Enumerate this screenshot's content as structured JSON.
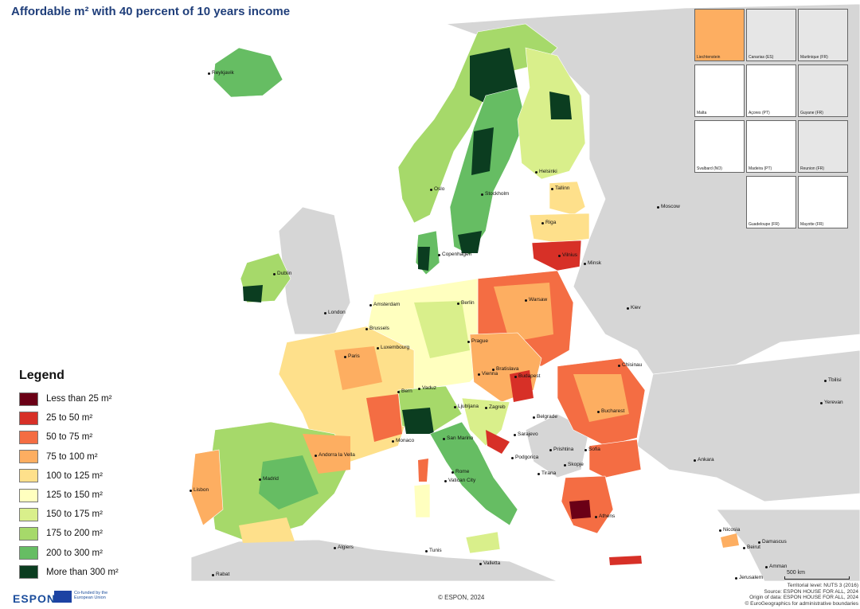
{
  "title": "Affordable m² with 40 percent of 10 years income",
  "legend": {
    "heading": "Legend",
    "items": [
      {
        "label": "Less than 25 m²",
        "color": "#6b0016"
      },
      {
        "label": "25 to 50 m²",
        "color": "#d73027"
      },
      {
        "label": "50 to 75 m²",
        "color": "#f46d43"
      },
      {
        "label": "75 to 100 m²",
        "color": "#fdae61"
      },
      {
        "label": "100 to 125 m²",
        "color": "#fee08b"
      },
      {
        "label": "125 to 150 m²",
        "color": "#ffffbf"
      },
      {
        "label": "150 to 175 m²",
        "color": "#d9ef8b"
      },
      {
        "label": "175 to 200 m²",
        "color": "#a6d96a"
      },
      {
        "label": "200 to 300 m²",
        "color": "#66bd63"
      },
      {
        "label": "More than 300  m²",
        "color": "#0b3d20"
      }
    ]
  },
  "insets": [
    "Liechtenstein",
    "Canarias (ES)",
    "Martinique (FR)",
    "Malta",
    "Açores (PT)",
    "Guyane (FR)",
    "Svalbard (NO)",
    "Madeira (PT)",
    "Reunion (FR)",
    "Guadeloupe (FR)",
    "Mayotte (FR)"
  ],
  "cities": {
    "reykjavik": "Reykjavik",
    "oslo": "Oslo",
    "stockholm": "Stockholm",
    "helsinki": "Helsinki",
    "tallinn": "Tallinn",
    "riga": "Riga",
    "vilnius": "Vilnius",
    "moscow": "Moscow",
    "minsk": "Minsk",
    "copenhagen": "Copenhagen",
    "dublin": "Dublin",
    "london": "London",
    "amsterdam": "Amsterdam",
    "berlin": "Berlin",
    "warsaw": "Warsaw",
    "kiev": "Kiev",
    "brussels": "Brussels",
    "luxembourg": "Luxembourg",
    "paris": "Paris",
    "prague": "Prague",
    "vienna": "Vienna",
    "bratislava": "Bratislava",
    "budapest": "Budapest",
    "chisinau": "Chisinau",
    "bern": "Bern",
    "vaduz": "Vaduz",
    "ljubljana": "Ljubljana",
    "zagreb": "Zagreb",
    "belgrade": "Belgrade",
    "bucharest": "Bucharest",
    "monaco": "Monaco",
    "san_marino": "San Marino",
    "sarajevo": "Sarajevo",
    "pristina": "Prishtina",
    "sofia": "Sofia",
    "podgorica": "Podgorica",
    "skopje": "Skopje",
    "tirana": "Tirana",
    "andorra": "Andorra la Vella",
    "madrid": "Madrid",
    "rome": "Rome",
    "vatican": "Vatican City",
    "lisbon": "Lisbon",
    "athens": "Athens",
    "ankara": "Ankara",
    "tbilisi": "Tbilisi",
    "yerevan": "Yerevan",
    "nicosia": "Nicosia",
    "beirut": "Beirut",
    "damascus": "Damascus",
    "amman": "Amman",
    "jerusalem": "Jerusalem",
    "algiers": "Algiers",
    "tunis": "Tunis",
    "valletta": "Valletta",
    "rabat": "Rabat"
  },
  "scale": "500 km",
  "footer": {
    "logo": "ESPON",
    "eu_text": "Co-funded by the European Union",
    "copyright": "© ESPON, 2024",
    "credits": [
      "Territorial level: NUTS 3 (2016)",
      "Source: ESPON HOUSE FOR ALL, 2024",
      "Origin of data: ESPON HOUSE FOR ALL, 2024",
      "© EuroGeographics for administrative boundaries"
    ]
  }
}
